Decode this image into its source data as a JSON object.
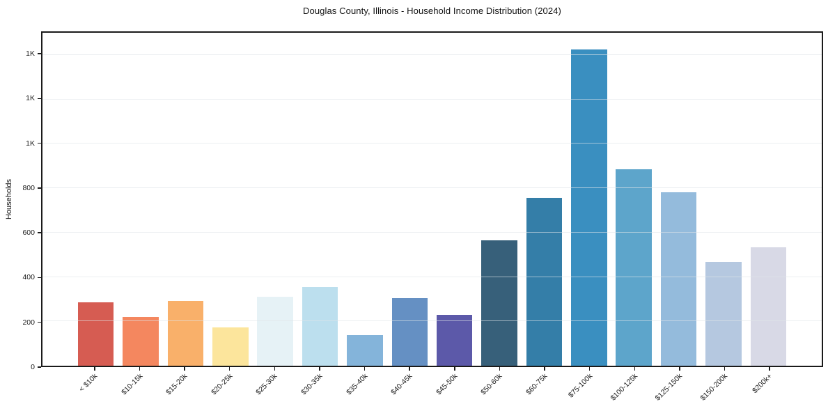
{
  "chart_data": {
    "type": "bar",
    "title": "Douglas County, Illinois - Household Income Distribution (2024)",
    "xlabel": "",
    "ylabel": "Households",
    "categories": [
      "< $10k",
      "$10-15k",
      "$15-20k",
      "$20-25k",
      "$25-30k",
      "$30-35k",
      "$35-40k",
      "$40-45k",
      "$45-50k",
      "$50-60k",
      "$60-75k",
      "$75-100k",
      "$100-125k",
      "$125-150k",
      "$150-200k",
      "$200k+"
    ],
    "values": [
      285,
      220,
      292,
      174,
      312,
      356,
      139,
      306,
      230,
      566,
      757,
      1426,
      885,
      780,
      468,
      533
    ],
    "bar_colors": [
      "#d65c52",
      "#f4875f",
      "#f9b06a",
      "#fce59c",
      "#e6f2f6",
      "#bcdfee",
      "#84b4da",
      "#6590c3",
      "#5c59a9",
      "#37607a",
      "#347ea8",
      "#3a8fc0",
      "#5da5cb",
      "#94bbdc",
      "#b5c8e0",
      "#d8d9e6"
    ],
    "ylim": [
      0,
      1500
    ],
    "yticks": [
      {
        "value": 0,
        "label": "0"
      },
      {
        "value": 200,
        "label": "200"
      },
      {
        "value": 400,
        "label": "400"
      },
      {
        "value": 600,
        "label": "600"
      },
      {
        "value": 800,
        "label": "800"
      },
      {
        "value": 1000,
        "label": "1K"
      },
      {
        "value": 1200,
        "label": "1K"
      },
      {
        "value": 1400,
        "label": "1K"
      }
    ],
    "grid": "horizontal",
    "legend": "none",
    "background_color": "#ffffff",
    "spine_color": "#1a1a1a",
    "gridline_color": "#e1e5e9"
  }
}
